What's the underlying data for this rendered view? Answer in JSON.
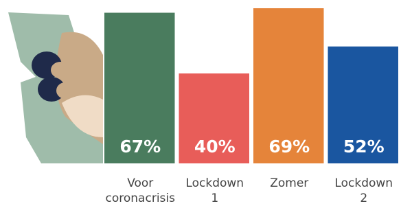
{
  "chart_data": {
    "type": "bar",
    "categories": [
      "Voor coronacrisis",
      "Lockdown 1",
      "Zomer",
      "Lockdown 2"
    ],
    "values": [
      67,
      40,
      69,
      52
    ],
    "value_labels": [
      "67%",
      "40%",
      "69%",
      "52%"
    ],
    "colors": [
      "#4a7c5e",
      "#e85d59",
      "#e5843a",
      "#1a56a0"
    ]
  }
}
